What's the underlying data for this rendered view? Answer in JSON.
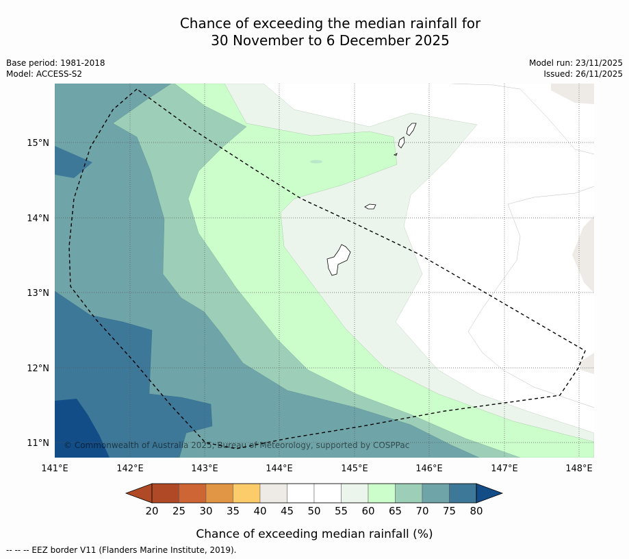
{
  "title_line1": "Chance of exceeding the median rainfall for",
  "title_line2": "30 November to 6 December 2025",
  "base_period": "Base period: 1981-2018",
  "model": "Model: ACCESS-S2",
  "model_run": "Model run: 23/11/2025",
  "issued": "Issued: 26/11/2025",
  "copyright": "© Commonwealth of Australia 2025, Bureau of Meteorology, supported by COSPPac",
  "lon_ticks": [
    "141°E",
    "142°E",
    "143°E",
    "144°E",
    "145°E",
    "146°E",
    "147°E",
    "148°E"
  ],
  "lat_ticks": [
    "15°N",
    "14°N",
    "13°N",
    "12°N",
    "11°N"
  ],
  "colorbar": {
    "label": "Chance of exceeding median rainfall (%)",
    "ticks": [
      "20",
      "25",
      "30",
      "35",
      "40",
      "45",
      "50",
      "55",
      "60",
      "65",
      "70",
      "75",
      "80"
    ],
    "colors": [
      "#b04a26",
      "#cd6634",
      "#e19646",
      "#fccc6b",
      "#eeebe6",
      "#ffffff",
      "#ffffff",
      "#ebf5eb",
      "#ccfecc",
      "#9dcfb8",
      "#6fa5a8",
      "#3d7899",
      "#134d87"
    ]
  },
  "legend_footnote": "--  --  -- EEZ border V11 (Flanders Marine Institute, 2019).",
  "icons": [
    "eez-border-line",
    "coastline"
  ]
}
